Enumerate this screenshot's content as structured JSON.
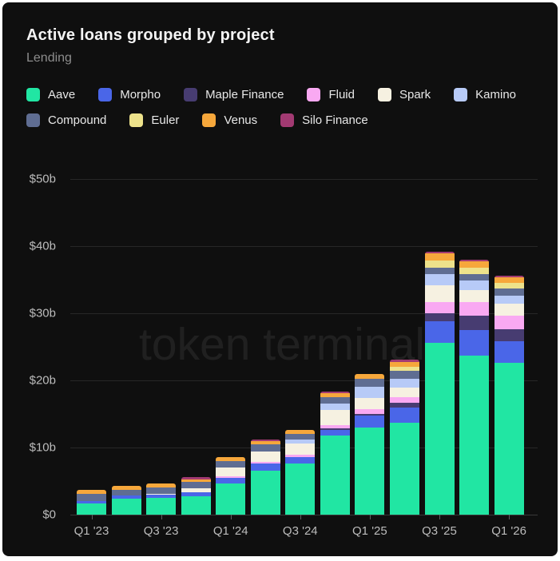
{
  "header": {
    "title": "Active loans grouped by project",
    "subtitle": "Lending"
  },
  "watermark": "token terminal",
  "colors": {
    "card_background": "#0f0f0f",
    "page_border": "#ffffff",
    "gridline": "#272727",
    "axis_text": "#bcbcbc",
    "title_text": "#f4f4f4",
    "subtitle_text": "#8d8d8d"
  },
  "chart_data": {
    "type": "bar",
    "stacked": true,
    "title": "Active loans grouped by project",
    "subtitle": "Lending",
    "unit": "USD billions",
    "grid": "horizontal",
    "legend_position": "top",
    "categories": [
      "Q1 '23",
      "Q2 '23",
      "Q3 '23",
      "Q4 '23",
      "Q1 '24",
      "Q2 '24",
      "Q3 '24",
      "Q4 '24",
      "Q1 '25",
      "Q2 '25",
      "Q3 '25",
      "Q4 '25",
      "Q1 '26"
    ],
    "x_label_every": 2,
    "ylim": [
      0,
      52
    ],
    "y_ticks": [
      {
        "label": "$0",
        "value": 0
      },
      {
        "label": "$10b",
        "value": 10
      },
      {
        "label": "$20b",
        "value": 20
      },
      {
        "label": "$30b",
        "value": 30
      },
      {
        "label": "$40b",
        "value": 40
      },
      {
        "label": "$50b",
        "value": 50
      }
    ],
    "series": [
      {
        "name": "Aave",
        "color": "#21e6a3",
        "values": [
          1.65,
          2.4,
          2.5,
          2.75,
          4.6,
          6.5,
          7.6,
          11.8,
          13.0,
          13.75,
          25.55,
          23.65,
          22.6
        ]
      },
      {
        "name": "Morpho",
        "color": "#4a66e8",
        "values": [
          0.4,
          0.45,
          0.45,
          0.55,
          0.9,
          1.1,
          0.95,
          0.8,
          1.75,
          2.25,
          3.25,
          3.8,
          3.25
        ]
      },
      {
        "name": "Maple Finance",
        "color": "#473c71",
        "values": [
          0,
          0,
          0,
          0,
          0,
          0,
          0,
          0.25,
          0.3,
          0.65,
          1.25,
          2.2,
          1.75
        ]
      },
      {
        "name": "Fluid",
        "color": "#f9a9f2",
        "values": [
          0,
          0,
          0,
          0,
          0.2,
          0.25,
          0.4,
          0.5,
          0.7,
          0.8,
          1.6,
          2.05,
          2.0
        ]
      },
      {
        "name": "Spark",
        "color": "#f6f1e1",
        "values": [
          0,
          0,
          0.2,
          0.65,
          1.35,
          1.5,
          1.65,
          2.3,
          1.65,
          1.5,
          2.55,
          1.8,
          1.8
        ]
      },
      {
        "name": "Kamino",
        "color": "#b7caf7",
        "values": [
          0,
          0,
          0,
          0,
          0,
          0,
          0.6,
          0.9,
          1.6,
          1.25,
          1.65,
          1.35,
          1.2
        ]
      },
      {
        "name": "Compound",
        "color": "#5f6d92",
        "values": [
          1.05,
          0.9,
          0.95,
          0.9,
          0.95,
          1.1,
          0.85,
          0.9,
          1.2,
          1.2,
          0.95,
          1.05,
          1.05
        ]
      },
      {
        "name": "Euler",
        "color": "#ede28b",
        "values": [
          0,
          0,
          0,
          0,
          0,
          0,
          0,
          0,
          0,
          0.65,
          1.1,
          0.9,
          0.85
        ]
      },
      {
        "name": "Venus",
        "color": "#f6a73b",
        "values": [
          0.55,
          0.6,
          0.55,
          0.45,
          0.55,
          0.5,
          0.6,
          0.7,
          0.7,
          0.7,
          1.0,
          0.9,
          0.85
        ]
      },
      {
        "name": "Silo Finance",
        "color": "#a23a72",
        "values": [
          0,
          0,
          0,
          0.25,
          0,
          0.25,
          0,
          0.15,
          0,
          0.3,
          0.3,
          0.3,
          0.3
        ]
      }
    ],
    "totals": [
      3.65,
      4.35,
      4.65,
      5.55,
      8.55,
      11.2,
      12.65,
      18.3,
      20.9,
      23.05,
      39.2,
      38.0,
      35.65
    ]
  }
}
